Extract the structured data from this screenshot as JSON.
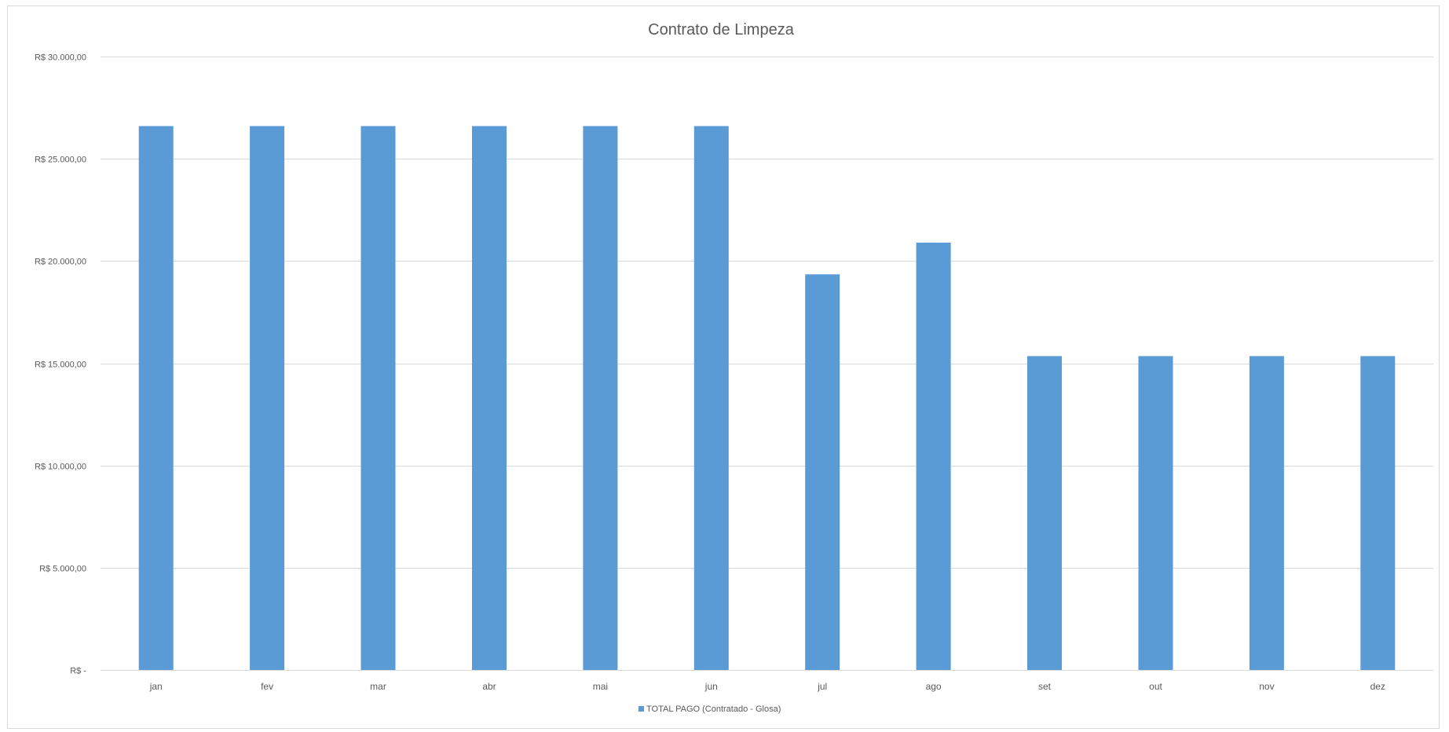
{
  "chart_data": {
    "type": "bar",
    "title": "Contrato de Limpeza",
    "categories": [
      "jan",
      "fev",
      "mar",
      "abr",
      "mai",
      "jun",
      "jul",
      "ago",
      "set",
      "out",
      "nov",
      "dez"
    ],
    "series": [
      {
        "name": "TOTAL PAGO (Contratado - Glosa)",
        "color": "#5b9bd5",
        "values": [
          26600,
          26600,
          26600,
          26600,
          26600,
          26600,
          19350,
          20900,
          15350,
          15350,
          15350,
          15350
        ]
      }
    ],
    "ylim": [
      0,
      30000
    ],
    "yticks": [
      {
        "value": 0,
        "label": "R$ -"
      },
      {
        "value": 5000,
        "label": "R$ 5.000,00"
      },
      {
        "value": 10000,
        "label": "R$ 10.000,00"
      },
      {
        "value": 15000,
        "label": "R$ 15.000,00"
      },
      {
        "value": 20000,
        "label": "R$ 20.000,00"
      },
      {
        "value": 25000,
        "label": "R$ 25.000,00"
      },
      {
        "value": 30000,
        "label": "R$ 30.000,00"
      }
    ],
    "xlabel": "",
    "ylabel": "",
    "grid": true,
    "legend_position": "bottom"
  }
}
